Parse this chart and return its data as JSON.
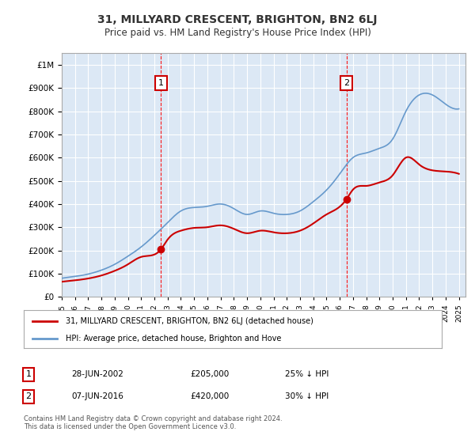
{
  "title": "31, MILLYARD CRESCENT, BRIGHTON, BN2 6LJ",
  "subtitle": "Price paid vs. HM Land Registry's House Price Index (HPI)",
  "legend_label_red": "31, MILLYARD CRESCENT, BRIGHTON, BN2 6LJ (detached house)",
  "legend_label_blue": "HPI: Average price, detached house, Brighton and Hove",
  "annotation1_date": "28-JUN-2002",
  "annotation1_price": "£205,000",
  "annotation1_hpi": "25% ↓ HPI",
  "annotation1_year": 2002.5,
  "annotation1_value": 205000,
  "annotation2_date": "07-JUN-2016",
  "annotation2_price": "£420,000",
  "annotation2_hpi": "30% ↓ HPI",
  "annotation2_year": 2016.5,
  "annotation2_value": 420000,
  "footer": "Contains HM Land Registry data © Crown copyright and database right 2024.\nThis data is licensed under the Open Government Licence v3.0.",
  "background_color": "#e8f0f8",
  "plot_bg_color": "#dce8f5",
  "red_color": "#cc0000",
  "blue_color": "#6699cc",
  "title_color": "#333333",
  "grid_color": "#ffffff",
  "ylim": [
    0,
    1050000
  ],
  "xlim": [
    1995,
    2025.5
  ]
}
